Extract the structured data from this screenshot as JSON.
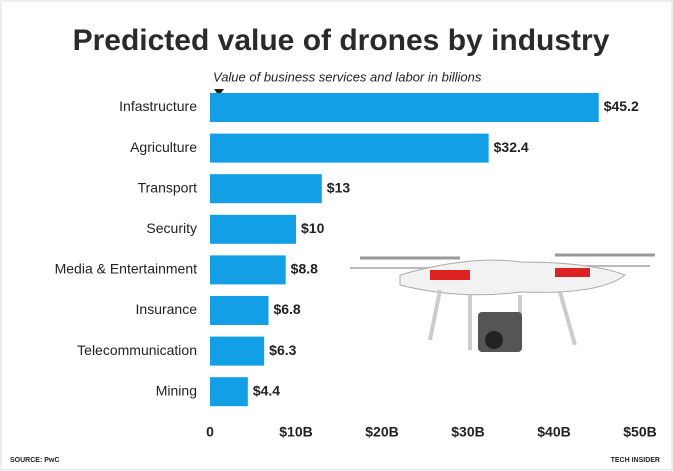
{
  "chart_data": {
    "type": "bar",
    "orientation": "horizontal",
    "title": "Predicted value of drones by industry",
    "subtitle": "Value of business services and labor in billions",
    "categories": [
      "Infastructure",
      "Agriculture",
      "Transport",
      "Security",
      "Media & Entertainment",
      "Insurance",
      "Telecommunication",
      "Mining"
    ],
    "values": [
      45.2,
      32.4,
      13,
      10,
      8.8,
      6.8,
      6.3,
      4.4
    ],
    "value_labels": [
      "$45.2",
      "$32.4",
      "$13",
      "$10",
      "$8.8",
      "$6.8",
      "$6.3",
      "$4.4"
    ],
    "color": "#129fe6",
    "xlim": [
      0,
      50
    ],
    "xticks": [
      0,
      {
        "value": 10,
        "label": "$10B"
      },
      {
        "value": 20,
        "label": "$20B"
      },
      {
        "value": 30,
        "label": "$30B"
      },
      {
        "value": 40,
        "label": "$40B"
      },
      {
        "value": 50,
        "label": "$50B"
      }
    ],
    "source": "SOURCE: PwC",
    "brand": "TECH INSIDER"
  }
}
